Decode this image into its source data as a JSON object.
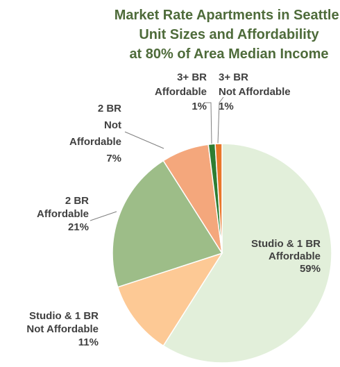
{
  "chart_data": {
    "type": "pie",
    "title": [
      "Market Rate Apartments in Seattle:",
      "Unit Sizes and Affordability",
      "at 80% of Area Median Income"
    ],
    "categories": [
      [
        "Studio & 1 BR",
        "Affordable"
      ],
      [
        "Studio & 1 BR",
        "Not Affordable"
      ],
      [
        "2 BR",
        "Affordable"
      ],
      [
        "2 BR",
        "Not",
        "Affordable"
      ],
      [
        "3+ BR",
        "Affordable"
      ],
      [
        "3+ BR",
        "Not Affordable"
      ]
    ],
    "values": [
      59,
      11,
      21,
      7,
      1,
      1
    ],
    "value_labels": [
      "59%",
      "11%",
      "21%",
      "7%",
      "1%",
      "1%"
    ],
    "colors": [
      "#e2efda",
      "#fdc995",
      "#9dbd88",
      "#f4a77c",
      "#2e7d32",
      "#e8772a"
    ]
  }
}
